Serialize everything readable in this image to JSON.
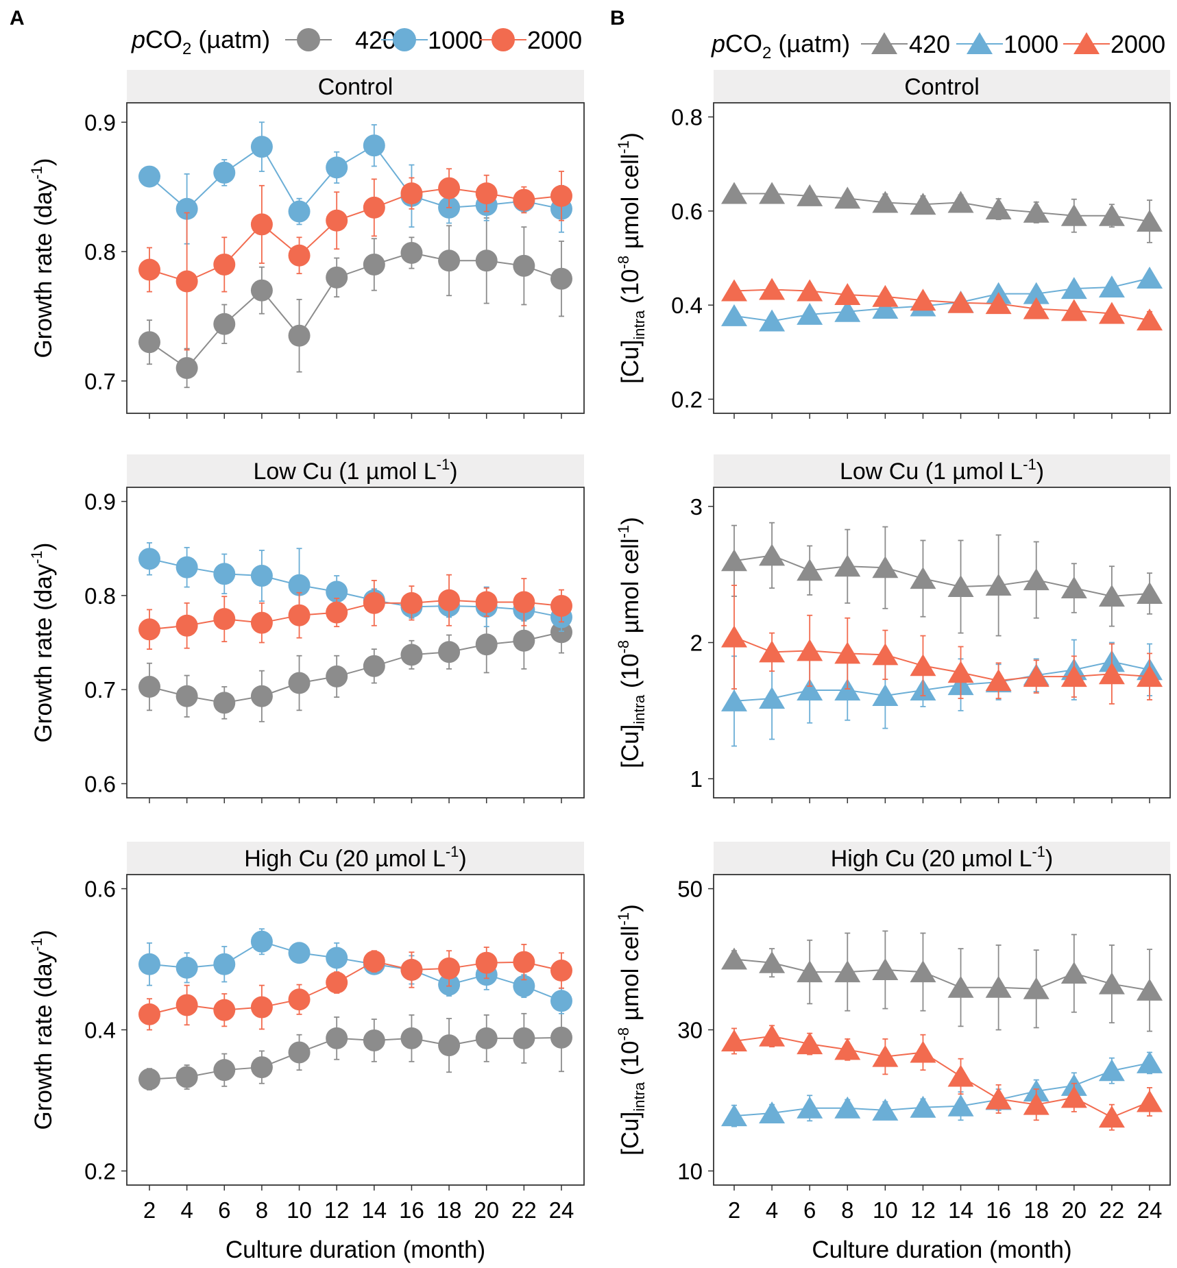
{
  "colors": {
    "420": "#8C8C8C",
    "1000": "#6BAED6",
    "2000": "#F26B4F",
    "strip": "#EFEEEE"
  },
  "chart_data": [
    {
      "panel": "A",
      "type": "line",
      "marker": "circle",
      "legend_title": "pCO2 (µatm)",
      "legend_title_parts": {
        "italic": "p",
        "main": "CO",
        "sub": "2",
        "rest": " (µatm)"
      },
      "legend_labels": [
        "420",
        "1000",
        "2000"
      ],
      "xlabel": "Culture duration (month)",
      "x": [
        2,
        4,
        6,
        8,
        10,
        12,
        14,
        16,
        18,
        20,
        22,
        24
      ],
      "x_ticks": [
        "2",
        "4",
        "6",
        "8",
        "10",
        "12",
        "14",
        "16",
        "18",
        "20",
        "22",
        "24"
      ],
      "ylabel_parts": {
        "main": "Growth rate (day",
        "sup": "-1",
        "end": ")"
      },
      "facets": [
        {
          "strip": "Control",
          "ylim": [
            0.675,
            0.915
          ],
          "yticks": [
            0.7,
            0.8,
            0.9
          ],
          "ytick_labels": [
            "0.7",
            "0.8",
            "0.9"
          ],
          "series": [
            {
              "name": "420",
              "values": [
                0.73,
                0.71,
                0.744,
                0.77,
                0.735,
                0.78,
                0.79,
                0.799,
                0.793,
                0.793,
                0.789,
                0.779
              ],
              "errors": [
                0.017,
                0.015,
                0.015,
                0.018,
                0.028,
                0.015,
                0.02,
                0.012,
                0.027,
                0.033,
                0.03,
                0.029
              ]
            },
            {
              "name": "1000",
              "values": [
                0.858,
                0.833,
                0.861,
                0.881,
                0.831,
                0.865,
                0.882,
                0.843,
                0.834,
                0.836,
                0.839,
                0.833
              ],
              "errors": [
                0.006,
                0.027,
                0.01,
                0.019,
                0.01,
                0.012,
                0.016,
                0.024,
                0.012,
                0.012,
                0.008,
                0.018
              ]
            },
            {
              "name": "2000",
              "values": [
                0.786,
                0.777,
                0.79,
                0.821,
                0.797,
                0.824,
                0.834,
                0.845,
                0.849,
                0.845,
                0.84,
                0.843
              ],
              "errors": [
                0.017,
                0.053,
                0.021,
                0.03,
                0.014,
                0.022,
                0.022,
                0.012,
                0.015,
                0.014,
                0.01,
                0.019
              ]
            }
          ]
        },
        {
          "strip": "Low Cu (1 µmol L-1)",
          "strip_parts": {
            "main": "Low Cu (1 µmol L",
            "sup": "-1",
            "end": ")"
          },
          "ylim": [
            0.585,
            0.915
          ],
          "yticks": [
            0.6,
            0.7,
            0.8,
            0.9
          ],
          "ytick_labels": [
            "0.6",
            "0.7",
            "0.8",
            "0.9"
          ],
          "series": [
            {
              "name": "420",
              "values": [
                0.703,
                0.693,
                0.686,
                0.693,
                0.707,
                0.714,
                0.725,
                0.737,
                0.74,
                0.748,
                0.752,
                0.761
              ],
              "errors": [
                0.025,
                0.022,
                0.017,
                0.027,
                0.029,
                0.022,
                0.018,
                0.015,
                0.018,
                0.03,
                0.03,
                0.022
              ]
            },
            {
              "name": "1000",
              "values": [
                0.839,
                0.83,
                0.823,
                0.821,
                0.811,
                0.804,
                0.795,
                0.788,
                0.789,
                0.788,
                0.785,
                0.777
              ],
              "errors": [
                0.017,
                0.021,
                0.021,
                0.027,
                0.039,
                0.017,
                0.012,
                0.012,
                0.012,
                0.021,
                0.012,
                0.015
              ]
            },
            {
              "name": "2000",
              "values": [
                0.764,
                0.768,
                0.775,
                0.771,
                0.779,
                0.782,
                0.792,
                0.792,
                0.795,
                0.793,
                0.793,
                0.789
              ],
              "errors": [
                0.021,
                0.024,
                0.024,
                0.021,
                0.024,
                0.015,
                0.024,
                0.018,
                0.027,
                0.015,
                0.025,
                0.017
              ]
            }
          ]
        },
        {
          "strip": "High Cu (20 µmol L-1)",
          "strip_parts": {
            "main": "High Cu (20 µmol L",
            "sup": "-1",
            "end": ")"
          },
          "ylim": [
            0.18,
            0.62
          ],
          "yticks": [
            0.2,
            0.4,
            0.6
          ],
          "ytick_labels": [
            "0.2",
            "0.4",
            "0.6"
          ],
          "series": [
            {
              "name": "420",
              "values": [
                0.33,
                0.333,
                0.343,
                0.347,
                0.368,
                0.388,
                0.385,
                0.388,
                0.378,
                0.388,
                0.388,
                0.389
              ],
              "errors": [
                0.015,
                0.017,
                0.023,
                0.023,
                0.025,
                0.03,
                0.03,
                0.033,
                0.038,
                0.033,
                0.035,
                0.048
              ]
            },
            {
              "name": "1000",
              "values": [
                0.493,
                0.488,
                0.493,
                0.525,
                0.509,
                0.502,
                0.493,
                0.485,
                0.464,
                0.478,
                0.462,
                0.441
              ],
              "errors": [
                0.03,
                0.021,
                0.025,
                0.018,
                0.012,
                0.021,
                0.012,
                0.02,
                0.016,
                0.021,
                0.016,
                0.018
              ]
            },
            {
              "name": "2000",
              "values": [
                0.422,
                0.435,
                0.428,
                0.432,
                0.443,
                0.467,
                0.497,
                0.485,
                0.487,
                0.495,
                0.496,
                0.484
              ],
              "errors": [
                0.022,
                0.028,
                0.023,
                0.031,
                0.021,
                0.015,
                0.015,
                0.025,
                0.025,
                0.022,
                0.025,
                0.025
              ]
            }
          ]
        }
      ]
    },
    {
      "panel": "B",
      "type": "line",
      "marker": "triangle",
      "legend_title": "pCO2 (µatm)",
      "legend_title_parts": {
        "italic": "p",
        "main": "CO",
        "sub": "2",
        "rest": " (µatm)"
      },
      "legend_labels": [
        "420",
        "1000",
        "2000"
      ],
      "xlabel": "Culture duration (month)",
      "x": [
        2,
        4,
        6,
        8,
        10,
        12,
        14,
        16,
        18,
        20,
        22,
        24
      ],
      "x_ticks": [
        "2",
        "4",
        "6",
        "8",
        "10",
        "12",
        "14",
        "16",
        "18",
        "20",
        "22",
        "24"
      ],
      "ylabel_parts": {
        "main": "[Cu]",
        "sub": "intra",
        "mid": " (10",
        "sup": "-8",
        "mid2": " µmol cell",
        "sup2": "-1",
        "end": ")"
      },
      "facets": [
        {
          "strip": "Control",
          "ylim": [
            0.17,
            0.83
          ],
          "yticks": [
            0.2,
            0.4,
            0.6,
            0.8
          ],
          "ytick_labels": [
            "0.2",
            "0.4",
            "0.6",
            "0.8"
          ],
          "series": [
            {
              "name": "420",
              "values": [
                0.637,
                0.637,
                0.632,
                0.627,
                0.618,
                0.614,
                0.618,
                0.604,
                0.597,
                0.59,
                0.59,
                0.578
              ],
              "errors": [
                0.01,
                0.008,
                0.01,
                0.012,
                0.018,
                0.018,
                0.016,
                0.022,
                0.022,
                0.035,
                0.024,
                0.045
              ]
            },
            {
              "name": "1000",
              "values": [
                0.377,
                0.366,
                0.38,
                0.386,
                0.393,
                0.398,
                0.406,
                0.424,
                0.424,
                0.435,
                0.438,
                0.457
              ],
              "errors": [
                0.008,
                0.006,
                0.008,
                0.01,
                0.008,
                0.008,
                0.008,
                0.01,
                0.01,
                0.012,
                0.01,
                0.012
              ]
            },
            {
              "name": "2000",
              "values": [
                0.43,
                0.433,
                0.43,
                0.422,
                0.418,
                0.41,
                0.405,
                0.403,
                0.392,
                0.388,
                0.382,
                0.368
              ],
              "errors": [
                0.01,
                0.008,
                0.012,
                0.012,
                0.01,
                0.012,
                0.012,
                0.014,
                0.014,
                0.014,
                0.012,
                0.018
              ]
            }
          ]
        },
        {
          "strip": "Low Cu (1 µmol L-1)",
          "strip_parts": {
            "main": "Low Cu (1 µmol L",
            "sup": "-1",
            "end": ")"
          },
          "ylim": [
            0.86,
            3.14
          ],
          "yticks": [
            1,
            2,
            3
          ],
          "ytick_labels": [
            "1",
            "2",
            "3"
          ],
          "series": [
            {
              "name": "420",
              "values": [
                2.6,
                2.64,
                2.53,
                2.56,
                2.55,
                2.47,
                2.41,
                2.42,
                2.46,
                2.4,
                2.34,
                2.36
              ],
              "errors": [
                0.26,
                0.24,
                0.18,
                0.27,
                0.3,
                0.28,
                0.34,
                0.37,
                0.28,
                0.18,
                0.22,
                0.15
              ]
            },
            {
              "name": "1000",
              "values": [
                1.57,
                1.59,
                1.65,
                1.65,
                1.61,
                1.65,
                1.69,
                1.71,
                1.76,
                1.8,
                1.86,
                1.8
              ],
              "errors": [
                0.33,
                0.3,
                0.24,
                0.22,
                0.24,
                0.12,
                0.19,
                0.13,
                0.12,
                0.22,
                0.14,
                0.19
              ]
            },
            {
              "name": "2000",
              "values": [
                2.04,
                1.93,
                1.94,
                1.92,
                1.91,
                1.83,
                1.78,
                1.72,
                1.75,
                1.75,
                1.77,
                1.75
              ],
              "errors": [
                0.38,
                0.14,
                0.26,
                0.26,
                0.18,
                0.22,
                0.19,
                0.13,
                0.12,
                0.15,
                0.22,
                0.17
              ]
            }
          ]
        },
        {
          "strip": "High Cu (20 µmol L-1)",
          "strip_parts": {
            "main": "High Cu (20 µmol L",
            "sup": "-1",
            "end": ")"
          },
          "ylim": [
            8,
            52
          ],
          "yticks": [
            10,
            30,
            50
          ],
          "ytick_labels": [
            "10",
            "30",
            "50"
          ],
          "series": [
            {
              "name": "420",
              "values": [
                40.0,
                39.5,
                38.2,
                38.2,
                38.5,
                38.2,
                36.0,
                36.0,
                35.8,
                38.0,
                36.5,
                35.6
              ],
              "errors": [
                1.2,
                2.0,
                4.5,
                5.5,
                5.5,
                5.5,
                5.5,
                6.0,
                5.5,
                5.5,
                5.5,
                5.8
              ]
            },
            {
              "name": "1000",
              "values": [
                17.8,
                18.2,
                18.9,
                18.9,
                18.6,
                19.0,
                19.2,
                20.1,
                21.3,
                22.1,
                24.2,
                25.3
              ],
              "errors": [
                1.5,
                1.2,
                1.8,
                1.2,
                1.2,
                1.2,
                2.0,
                1.5,
                1.6,
                1.8,
                1.8,
                1.5
              ]
            },
            {
              "name": "2000",
              "values": [
                28.4,
                29.1,
                28.0,
                27.2,
                26.2,
                26.8,
                23.4,
                20.2,
                19.4,
                20.4,
                17.6,
                19.8
              ],
              "errors": [
                1.8,
                1.5,
                1.5,
                1.5,
                2.5,
                2.5,
                2.5,
                2.0,
                2.2,
                2.0,
                1.8,
                2.0
              ]
            }
          ]
        }
      ]
    }
  ]
}
